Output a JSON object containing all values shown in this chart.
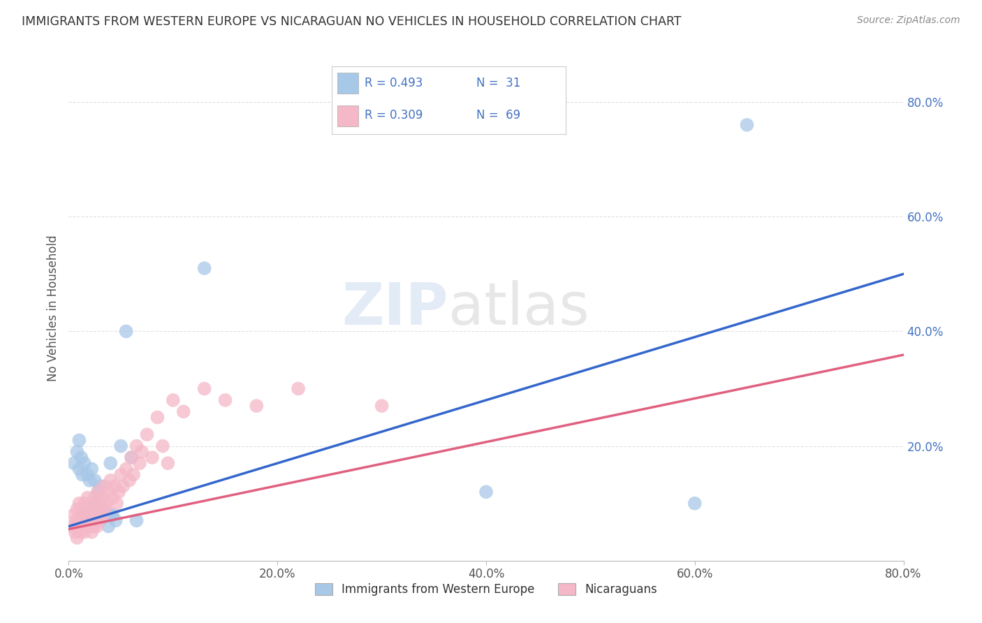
{
  "title": "IMMIGRANTS FROM WESTERN EUROPE VS NICARAGUAN NO VEHICLES IN HOUSEHOLD CORRELATION CHART",
  "source": "Source: ZipAtlas.com",
  "ylabel": "No Vehicles in Household",
  "xlim": [
    0.0,
    0.8
  ],
  "ylim": [
    0.0,
    0.88
  ],
  "blue_color": "#a8c8e8",
  "pink_color": "#f4b8c8",
  "blue_line_color": "#3366cc",
  "pink_line_color": "#e06080",
  "blue_line_intercept": 0.06,
  "blue_line_slope": 0.55,
  "pink_line_intercept": 0.055,
  "pink_line_slope": 0.38,
  "blue_scatter_x": [
    0.005,
    0.008,
    0.01,
    0.01,
    0.012,
    0.013,
    0.015,
    0.015,
    0.018,
    0.02,
    0.022,
    0.025,
    0.025,
    0.028,
    0.03,
    0.03,
    0.032,
    0.035,
    0.038,
    0.04,
    0.04,
    0.042,
    0.045,
    0.05,
    0.055,
    0.06,
    0.065,
    0.13,
    0.4,
    0.6,
    0.65
  ],
  "blue_scatter_y": [
    0.17,
    0.19,
    0.16,
    0.21,
    0.18,
    0.15,
    0.17,
    0.08,
    0.15,
    0.14,
    0.16,
    0.14,
    0.1,
    0.12,
    0.13,
    0.07,
    0.09,
    0.08,
    0.06,
    0.08,
    0.17,
    0.08,
    0.07,
    0.2,
    0.4,
    0.18,
    0.07,
    0.51,
    0.12,
    0.1,
    0.76
  ],
  "pink_scatter_x": [
    0.003,
    0.005,
    0.006,
    0.007,
    0.008,
    0.008,
    0.009,
    0.01,
    0.01,
    0.011,
    0.012,
    0.013,
    0.013,
    0.014,
    0.015,
    0.015,
    0.016,
    0.017,
    0.018,
    0.018,
    0.019,
    0.02,
    0.02,
    0.021,
    0.022,
    0.022,
    0.023,
    0.024,
    0.025,
    0.025,
    0.026,
    0.027,
    0.028,
    0.028,
    0.029,
    0.03,
    0.031,
    0.032,
    0.033,
    0.034,
    0.035,
    0.036,
    0.038,
    0.04,
    0.042,
    0.044,
    0.046,
    0.048,
    0.05,
    0.052,
    0.055,
    0.058,
    0.06,
    0.062,
    0.065,
    0.068,
    0.07,
    0.075,
    0.08,
    0.085,
    0.09,
    0.095,
    0.1,
    0.11,
    0.13,
    0.15,
    0.18,
    0.22,
    0.3
  ],
  "pink_scatter_y": [
    0.06,
    0.08,
    0.05,
    0.07,
    0.04,
    0.09,
    0.06,
    0.07,
    0.1,
    0.05,
    0.08,
    0.06,
    0.09,
    0.07,
    0.05,
    0.1,
    0.08,
    0.06,
    0.07,
    0.11,
    0.08,
    0.06,
    0.09,
    0.07,
    0.1,
    0.05,
    0.08,
    0.06,
    0.07,
    0.11,
    0.09,
    0.06,
    0.08,
    0.12,
    0.07,
    0.09,
    0.1,
    0.11,
    0.08,
    0.13,
    0.09,
    0.1,
    0.12,
    0.14,
    0.11,
    0.13,
    0.1,
    0.12,
    0.15,
    0.13,
    0.16,
    0.14,
    0.18,
    0.15,
    0.2,
    0.17,
    0.19,
    0.22,
    0.18,
    0.25,
    0.2,
    0.17,
    0.28,
    0.26,
    0.3,
    0.28,
    0.27,
    0.3,
    0.27
  ],
  "legend_label_blue": "Immigrants from Western Europe",
  "legend_label_pink": "Nicaraguans",
  "watermark_zip": "ZIP",
  "watermark_atlas": "atlas",
  "background_color": "#ffffff",
  "grid_color": "#dddddd"
}
